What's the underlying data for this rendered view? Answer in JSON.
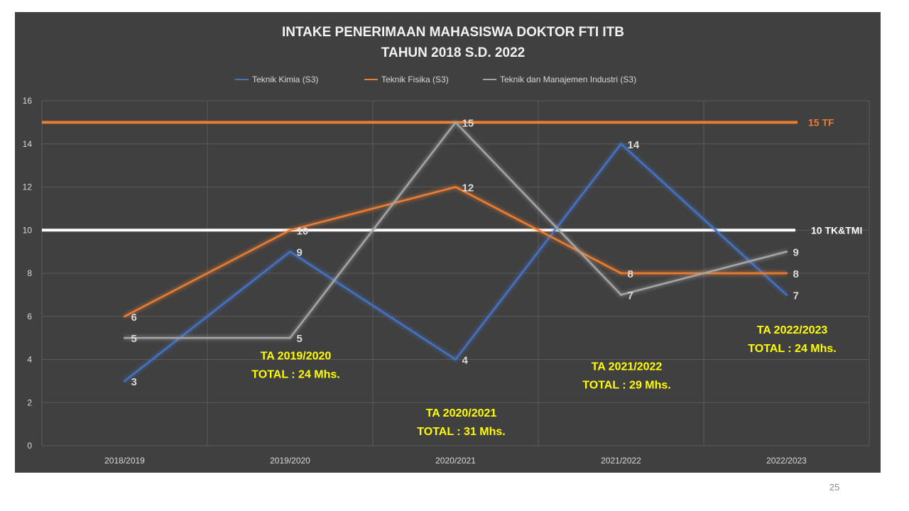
{
  "page_number": "25",
  "chart_data": {
    "type": "line",
    "title": "INTAKE PENERIMAAN MAHASISWA DOKTOR FTI ITB",
    "subtitle": "TAHUN 2018 S.D. 2022",
    "categories": [
      "2018/2019",
      "2019/2020",
      "2020/2021",
      "2021/2022",
      "2022/2023"
    ],
    "ylim": [
      0,
      16
    ],
    "yticks": [
      "0",
      "2",
      "4",
      "6",
      "8",
      "10",
      "12",
      "14",
      "16"
    ],
    "grid": true,
    "legend_position": "top",
    "series": [
      {
        "name": "Teknik Kimia (S3)",
        "values": [
          3,
          9,
          4,
          14,
          7
        ],
        "color": "#4472c4"
      },
      {
        "name": "Teknik Fisika (S3)",
        "values": [
          6,
          10,
          12,
          8,
          8
        ],
        "color": "#ed7d31"
      },
      {
        "name": "Teknik dan Manajemen Industri (S3)",
        "values": [
          5,
          5,
          15,
          7,
          9
        ],
        "color": "#a5a5a5"
      }
    ],
    "reference_lines": [
      {
        "value": 15,
        "label": "15 TF",
        "color": "#ed7d31"
      },
      {
        "value": 10,
        "label": "10 TK&TMI",
        "color": "#ffffff"
      }
    ],
    "annotations": [
      {
        "line1": "TA 2019/2020",
        "line2": "TOTAL  : 24 Mhs.",
        "category": "2019/2020",
        "y": 4.0
      },
      {
        "line1": "TA 2020/2021",
        "line2": "TOTAL  : 31 Mhs.",
        "category": "2020/2021",
        "y": 1.35
      },
      {
        "line1": "TA 2021/2022",
        "line2": "TOTAL  : 29 Mhs.",
        "category": "2021/2022",
        "y": 3.5
      },
      {
        "line1": "TA 2022/2023",
        "line2": "TOTAL  : 24 Mhs.",
        "category": "2022/2023",
        "y": 5.2
      }
    ],
    "annotation_color": "#ffff00"
  }
}
